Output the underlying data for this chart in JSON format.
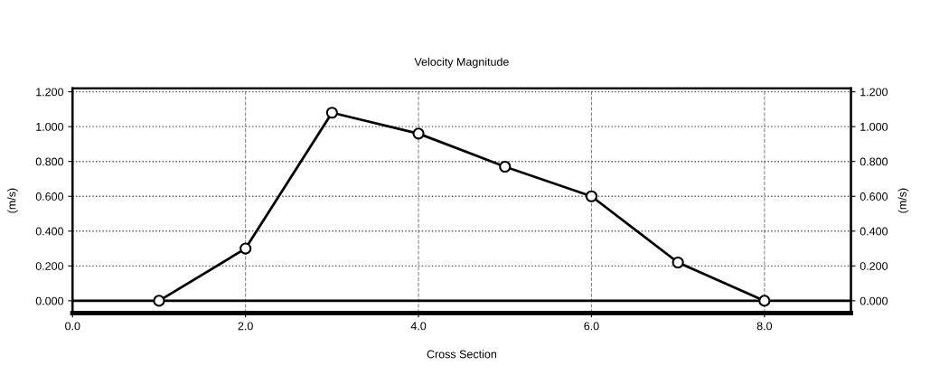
{
  "chart_data": {
    "type": "line",
    "title": "Velocity Magnitude",
    "xlabel": "Cross Section",
    "ylabel": "(m/s)",
    "y2label": "(m/s)",
    "x": [
      1,
      2,
      3,
      4,
      5,
      6,
      7,
      8
    ],
    "series": [
      {
        "color": "#000000",
        "values": [
          0,
          0.3,
          1.08,
          0.96,
          0.77,
          0.6,
          0.22,
          0
        ]
      }
    ],
    "marker": "circle",
    "line_style": "solid",
    "grid": true,
    "ref_lines": [
      {
        "axis": "y",
        "value": 0,
        "color": "#000000",
        "line_style": "solid"
      }
    ],
    "xlim": [
      0,
      9
    ],
    "xticks": [
      {
        "value": 0,
        "label": "0.0"
      },
      {
        "value": 2,
        "label": "2.0"
      },
      {
        "value": 4,
        "label": "4.0"
      },
      {
        "value": 6,
        "label": "6.0"
      },
      {
        "value": 8,
        "label": "8.0"
      }
    ],
    "ylim": [
      -0.07,
      1.22
    ],
    "yticks": [
      {
        "value": 0,
        "label": "0.000"
      },
      {
        "value": 0.2,
        "label": "0.200"
      },
      {
        "value": 0.4,
        "label": "0.400"
      },
      {
        "value": 0.6,
        "label": "0.600"
      },
      {
        "value": 0.8,
        "label": "0.800"
      },
      {
        "value": 1.0,
        "label": "1.000"
      },
      {
        "value": 1.2,
        "label": "1.200"
      }
    ],
    "y2lim": [
      -0.07,
      1.22
    ],
    "y2ticks": [
      {
        "value": 0,
        "label": "0.000"
      },
      {
        "value": 0.2,
        "label": "0.200"
      },
      {
        "value": 0.4,
        "label": "0.400"
      },
      {
        "value": 0.6,
        "label": "0.600"
      },
      {
        "value": 0.8,
        "label": "0.800"
      },
      {
        "value": 1.0,
        "label": "1.000"
      },
      {
        "value": 1.2,
        "label": "1.200"
      }
    ]
  }
}
